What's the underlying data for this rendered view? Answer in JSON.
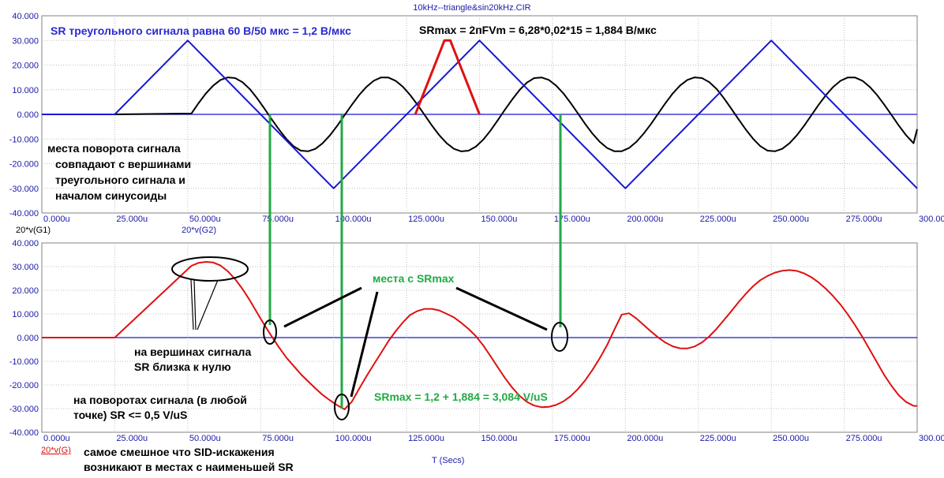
{
  "window_title": "10kHz--triangle&sin20kHz.CIR",
  "x_axis_title": "T (Secs)",
  "colors": {
    "blue": "#1818d0",
    "black": "#000000",
    "red": "#e01010",
    "green": "#22aa44",
    "grid": "#c0c0c0"
  },
  "chart_data": [
    {
      "type": "line",
      "x_range": [
        0,
        300
      ],
      "x_unit": "u",
      "ylim": [
        -40,
        40
      ],
      "x_ticks": [
        "0.000u",
        "25.000u",
        "50.000u",
        "75.000u",
        "100.000u",
        "125.000u",
        "150.000u",
        "175.000u",
        "200.000u",
        "225.000u",
        "250.000u",
        "275.000u",
        "300.000u"
      ],
      "y_ticks": [
        "40.000",
        "30.000",
        "20.000",
        "10.000",
        "0.000",
        "-10.000",
        "-20.000",
        "-30.000",
        "-40.000"
      ],
      "grid": true,
      "series": [
        {
          "name": "20*v(G1)",
          "color": "#000000",
          "x": [
            0,
            25,
            51.25,
            53.75,
            56.25,
            58.75,
            61.25,
            63.75,
            66.25,
            68.75,
            71.25,
            73.75,
            76.25,
            78.75,
            81.25,
            83.75,
            86.25,
            88.75,
            91.25,
            93.75,
            96.25,
            98.75,
            101.25,
            103.75,
            106.25,
            108.75,
            111.25,
            113.75,
            116.25,
            118.75,
            121.25,
            123.75,
            126.25,
            128.75,
            131.25,
            133.75,
            136.25,
            138.75,
            141.25,
            143.75,
            146.25,
            148.75,
            151.25,
            153.75,
            156.25,
            158.75,
            161.25,
            163.75,
            166.25,
            168.75,
            171.25,
            173.75,
            176.25,
            178.75,
            181.25,
            183.75,
            186.25,
            188.75,
            191.25,
            193.75,
            196.25,
            198.75,
            201.25,
            203.75,
            206.25,
            208.75,
            211.25,
            213.75,
            216.25,
            218.75,
            221.25,
            223.75,
            226.25,
            228.75,
            231.25,
            233.75,
            236.25,
            238.75,
            241.25,
            243.75,
            246.25,
            248.75,
            251.25,
            253.75,
            256.25,
            258.75,
            261.25,
            263.75,
            266.25,
            268.75,
            271.25,
            273.75,
            276.25,
            278.75,
            281.25,
            283.75,
            286.25,
            288.75,
            291.25,
            293.75,
            296.25,
            298.75,
            300
          ],
          "y": [
            0,
            0,
            0.35,
            4.61,
            8.51,
            11.72,
            13.97,
            15.0,
            14.71,
            13.1,
            10.3,
            6.6,
            2.4,
            -1.94,
            -6.1,
            -9.88,
            -12.91,
            -14.73,
            -14.97,
            -13.97,
            -11.72,
            -8.51,
            -4.61,
            -0.35,
            3.92,
            7.85,
            11.17,
            13.64,
            14.98,
            14.95,
            13.64,
            11.17,
            7.85,
            3.92,
            -0.35,
            -4.61,
            -8.51,
            -11.72,
            -13.97,
            -15.0,
            -14.71,
            -13.1,
            -10.3,
            -6.6,
            -2.4,
            1.94,
            6.1,
            9.88,
            12.91,
            14.73,
            14.97,
            13.97,
            11.72,
            8.51,
            4.61,
            0.35,
            -3.92,
            -7.85,
            -11.17,
            -13.64,
            -14.98,
            -14.95,
            -13.64,
            -11.17,
            -7.85,
            -3.92,
            0.35,
            4.61,
            8.51,
            11.72,
            13.97,
            15.0,
            14.71,
            13.1,
            10.3,
            6.6,
            2.4,
            -1.94,
            -6.1,
            -9.88,
            -12.91,
            -14.73,
            -14.97,
            -13.97,
            -11.72,
            -8.51,
            -4.61,
            -0.35,
            3.92,
            7.85,
            11.17,
            13.64,
            14.98,
            14.95,
            13.64,
            11.17,
            7.85,
            3.92,
            -0.35,
            -4.61,
            -8.51,
            -11.72,
            -6.0
          ]
        },
        {
          "name": "20*v(G2)",
          "color": "#1818d0",
          "x": [
            0,
            25,
            50,
            100,
            150,
            200,
            250,
            300
          ],
          "y": [
            0,
            0,
            30,
            -30,
            30,
            -30,
            30,
            -30
          ]
        },
        {
          "color": "#e01010",
          "x": [
            128,
            138,
            140,
            150
          ],
          "y": [
            0,
            30,
            30,
            0
          ]
        }
      ]
    },
    {
      "type": "line",
      "x_range": [
        0,
        300
      ],
      "x_unit": "u",
      "ylim": [
        -40,
        40
      ],
      "x_ticks": [
        "0.000u",
        "25.000u",
        "50.000u",
        "75.000u",
        "100.000u",
        "125.000u",
        "150.000u",
        "175.000u",
        "200.000u",
        "225.000u",
        "250.000u",
        "275.000u",
        "300.000u"
      ],
      "y_ticks": [
        "40.000",
        "30.000",
        "20.000",
        "10.000",
        "0.000",
        "-10.000",
        "-20.000",
        "-30.000",
        "-40.000"
      ],
      "grid": true,
      "series": [
        {
          "name": "20*v(G)",
          "color": "#e01010",
          "x": [
            0,
            25,
            51.25,
            53.75,
            56.25,
            58.75,
            61.25,
            63.75,
            66.25,
            68.75,
            71.25,
            73.75,
            76.25,
            78.75,
            81.25,
            83.75,
            86.25,
            88.75,
            91.25,
            93.75,
            96.25,
            98.75,
            101.25,
            103.75,
            106.25,
            108.75,
            111.25,
            113.75,
            116.25,
            118.75,
            121.25,
            123.75,
            126.25,
            128.75,
            131.25,
            133.75,
            136.25,
            138.75,
            141.25,
            143.75,
            146.25,
            148.75,
            151.25,
            153.75,
            156.25,
            158.75,
            161.25,
            163.75,
            166.25,
            168.75,
            171.25,
            173.75,
            176.25,
            178.75,
            181.25,
            183.75,
            186.25,
            188.75,
            191.25,
            193.75,
            196.25,
            198.75,
            201.25,
            203.75,
            206.25,
            208.75,
            211.25,
            213.75,
            216.25,
            218.75,
            221.25,
            223.75,
            226.25,
            228.75,
            231.25,
            233.75,
            236.25,
            238.75,
            241.25,
            243.75,
            246.25,
            248.75,
            251.25,
            253.75,
            256.25,
            258.75,
            261.25,
            263.75,
            266.25,
            268.75,
            271.25,
            273.75,
            276.25,
            278.75,
            281.25,
            283.75,
            286.25,
            288.75,
            291.25,
            293.75,
            296.25,
            298.75,
            300
          ],
          "y": [
            0,
            0,
            30.35,
            31.61,
            32.01,
            31.72,
            30.47,
            28.0,
            24.71,
            20.6,
            15.8,
            10.6,
            5.4,
            0.56,
            -4.1,
            -8.38,
            -11.91,
            -15.48,
            -18.47,
            -21.47,
            -24.22,
            -26.51,
            -28.61,
            -30.35,
            -27.08,
            -21.65,
            -16.33,
            -11.36,
            -6.52,
            -1.55,
            2.67,
            6.45,
            9.61,
            11.23,
            12.15,
            12.14,
            11.48,
            10.03,
            8.53,
            6.25,
            3.65,
            0.62,
            -3.24,
            -7.81,
            -12.53,
            -17.09,
            -21.2,
            -24.62,
            -27.16,
            -28.73,
            -29.39,
            -29.28,
            -28.45,
            -26.98,
            -24.73,
            -21.73,
            -18.02,
            -13.59,
            -8.64,
            -3.15,
            3.48,
            9.75,
            10.26,
            8.11,
            5.35,
            2.59,
            0.06,
            -2.12,
            -3.69,
            -4.53,
            -4.56,
            -3.75,
            -2.04,
            0.51,
            3.75,
            7.35,
            11.08,
            14.94,
            18.48,
            21.7,
            24.27,
            26.08,
            27.45,
            28.24,
            28.52,
            28.19,
            27.13,
            25.5,
            23.3,
            20.59,
            17.45,
            13.89,
            9.77,
            5.25,
            0.22,
            -5.06,
            -10.55,
            -15.85,
            -20.51,
            -24.45,
            -27.22,
            -28.83,
            -28.9
          ]
        }
      ]
    }
  ],
  "legends": {
    "top_g1": "20*v(G1)",
    "top_g2": "20*v(G2)",
    "bottom_g": "20*v(G)"
  },
  "annotations": {
    "sr_triangle": "SR треугольного сигнала равна 60 В/50 мкс = 1,2 В/мкс",
    "sr_max_formula": "SRmax = 2пFVm = 6,28*0,02*15 = 1,884 В/мкс",
    "turn_points_1": "места поворота сигнала",
    "turn_points_2": "совпадают с вершинами",
    "turn_points_3": "треугольного сигнала и",
    "turn_points_4": "началом синусоиды",
    "srmax_places": "места с SRmax",
    "peaks_1": "на вершинах сигнала",
    "peaks_2": "SR близка к нулю",
    "sum_srmax": "SRmax = 1,2 + 1,884 = 3,084 V/uS",
    "turns_1": "на поворотах сигнала (в любой",
    "turns_2": "точке) SR <= 0,5 V/uS",
    "funny_1": "самое смешное что SID-искажения",
    "funny_2": "возникают в местах с наименьшей SR"
  }
}
